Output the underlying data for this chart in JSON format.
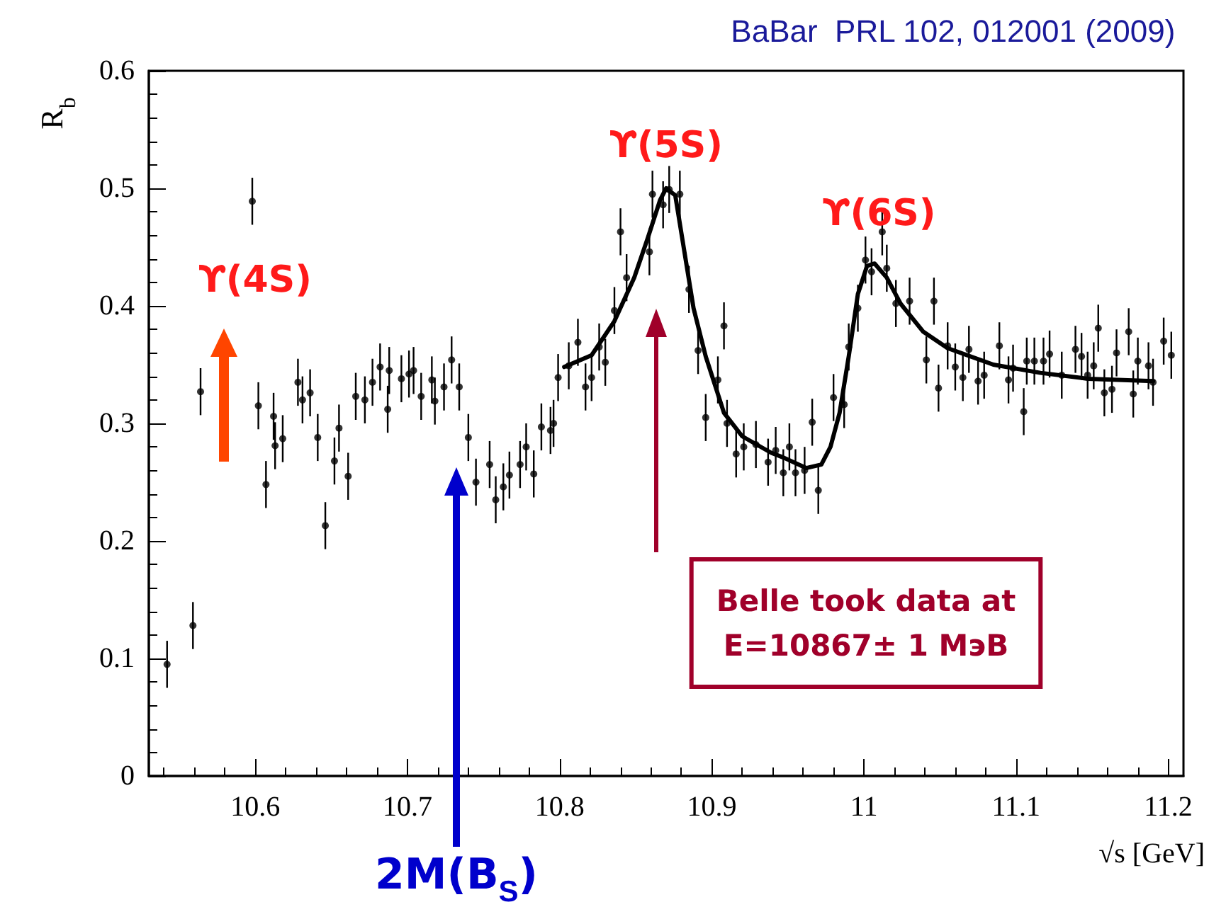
{
  "chart_data": {
    "type": "scatter",
    "title": "BaBar  PRL 102, 012001 (2009)",
    "xlabel": "√s [GeV]",
    "ylabel": "R$_{b}$",
    "xlim": [
      10.53,
      11.21
    ],
    "xticks": [
      10.6,
      10.7,
      10.8,
      10.9,
      11,
      11.1,
      11.2
    ],
    "ylim": [
      0,
      0.6
    ],
    "yticks": [
      0,
      0.1,
      0.2,
      0.3,
      0.4,
      0.5,
      0.6
    ],
    "series": [
      {
        "marker": "circle",
        "color": "#000000",
        "x": [
          10.542,
          10.559,
          10.564,
          10.598,
          10.602,
          10.607,
          10.612,
          10.613,
          10.618,
          10.628,
          10.631,
          10.636,
          10.641,
          10.646,
          10.652,
          10.655,
          10.661,
          10.666,
          10.672,
          10.677,
          10.682,
          10.687,
          10.688,
          10.696,
          10.701,
          10.704,
          10.709,
          10.716,
          10.718,
          10.724,
          10.729,
          10.734,
          10.74,
          10.745,
          10.754,
          10.758,
          10.763,
          10.767,
          10.774,
          10.778,
          10.783,
          10.788,
          10.794,
          10.796,
          10.799,
          10.806,
          10.812,
          10.817,
          10.821,
          10.826,
          10.83,
          10.836,
          10.84,
          10.844,
          10.859,
          10.861,
          10.868,
          10.872,
          10.879,
          10.885,
          10.891,
          10.896,
          10.904,
          10.908,
          10.91,
          10.916,
          10.921,
          10.929,
          10.937,
          10.942,
          10.947,
          10.951,
          10.955,
          10.961,
          10.966,
          10.97,
          10.98,
          10.987,
          10.99,
          10.996,
          11.001,
          11.005,
          11.012,
          11.015,
          11.021,
          11.03,
          11.041,
          11.046,
          11.049,
          11.055,
          11.06,
          11.065,
          11.069,
          11.075,
          11.079,
          11.089,
          11.095,
          11.098,
          11.105,
          11.107,
          11.112,
          11.118,
          11.122,
          11.13,
          11.139,
          11.143,
          11.147,
          11.151,
          11.154,
          11.158,
          11.163,
          11.166,
          11.174,
          11.177,
          11.18,
          11.187,
          11.19,
          11.197,
          11.202
        ],
        "values": [
          0.095,
          0.128,
          0.327,
          0.489,
          0.315,
          0.248,
          0.306,
          0.281,
          0.287,
          0.335,
          0.32,
          0.326,
          0.288,
          0.213,
          0.268,
          0.296,
          0.255,
          0.323,
          0.32,
          0.335,
          0.348,
          0.312,
          0.345,
          0.338,
          0.342,
          0.345,
          0.323,
          0.337,
          0.319,
          0.331,
          0.354,
          0.331,
          0.288,
          0.25,
          0.265,
          0.235,
          0.246,
          0.256,
          0.265,
          0.28,
          0.257,
          0.297,
          0.294,
          0.3,
          0.339,
          0.349,
          0.369,
          0.331,
          0.339,
          0.365,
          0.352,
          0.396,
          0.463,
          0.424,
          0.446,
          0.495,
          0.486,
          0.499,
          0.495,
          0.414,
          0.362,
          0.305,
          0.337,
          0.383,
          0.3,
          0.274,
          0.28,
          0.282,
          0.267,
          0.277,
          0.258,
          0.28,
          0.258,
          0.26,
          0.301,
          0.243,
          0.322,
          0.316,
          0.365,
          0.398,
          0.439,
          0.429,
          0.463,
          0.432,
          0.402,
          0.404,
          0.354,
          0.404,
          0.33,
          0.366,
          0.348,
          0.339,
          0.363,
          0.336,
          0.341,
          0.366,
          0.337,
          0.347,
          0.31,
          0.353,
          0.353,
          0.353,
          0.359,
          0.341,
          0.363,
          0.357,
          0.341,
          0.349,
          0.381,
          0.326,
          0.329,
          0.36,
          0.378,
          0.325,
          0.353,
          0.349,
          0.335,
          0.37,
          0.358
        ],
        "errors": [
          0.02,
          0.02,
          0.02,
          0.02,
          0.02,
          0.02,
          0.02,
          0.02,
          0.02,
          0.02,
          0.02,
          0.02,
          0.02,
          0.02,
          0.02,
          0.02,
          0.02,
          0.02,
          0.02,
          0.02,
          0.02,
          0.02,
          0.02,
          0.02,
          0.02,
          0.02,
          0.02,
          0.02,
          0.02,
          0.02,
          0.02,
          0.02,
          0.02,
          0.02,
          0.02,
          0.02,
          0.02,
          0.02,
          0.02,
          0.02,
          0.02,
          0.02,
          0.02,
          0.02,
          0.02,
          0.02,
          0.02,
          0.02,
          0.02,
          0.02,
          0.02,
          0.02,
          0.02,
          0.02,
          0.02,
          0.02,
          0.02,
          0.02,
          0.02,
          0.02,
          0.02,
          0.02,
          0.02,
          0.02,
          0.02,
          0.02,
          0.02,
          0.02,
          0.02,
          0.02,
          0.02,
          0.02,
          0.02,
          0.02,
          0.02,
          0.02,
          0.02,
          0.02,
          0.02,
          0.02,
          0.02,
          0.02,
          0.02,
          0.02,
          0.02,
          0.02,
          0.02,
          0.02,
          0.02,
          0.02,
          0.02,
          0.02,
          0.02,
          0.02,
          0.02,
          0.02,
          0.02,
          0.02,
          0.02,
          0.02,
          0.02,
          0.02,
          0.02,
          0.02,
          0.02,
          0.02,
          0.02,
          0.02,
          0.02,
          0.02,
          0.02,
          0.02,
          0.02,
          0.02,
          0.02,
          0.02,
          0.02,
          0.02,
          0.02
        ]
      },
      {
        "type": "line",
        "color": "#000000",
        "x": [
          10.803,
          10.821,
          10.836,
          10.849,
          10.858,
          10.866,
          10.87,
          10.876,
          10.882,
          10.888,
          10.896,
          10.908,
          10.92,
          10.939,
          10.947,
          10.962,
          10.972,
          10.978,
          10.984,
          10.99,
          10.996,
          11.002,
          11.007,
          11.015,
          11.024,
          11.039,
          11.055,
          11.085,
          11.116,
          11.147,
          11.19
        ],
        "values": [
          0.348,
          0.358,
          0.387,
          0.424,
          0.458,
          0.49,
          0.5,
          0.494,
          0.446,
          0.398,
          0.357,
          0.309,
          0.289,
          0.275,
          0.271,
          0.262,
          0.265,
          0.28,
          0.309,
          0.357,
          0.41,
          0.434,
          0.436,
          0.424,
          0.402,
          0.378,
          0.364,
          0.35,
          0.343,
          0.338,
          0.336
        ]
      }
    ],
    "annotations": [
      "ϒ(4S)",
      {
        "text": "ϒ(5S)",
        "x": 10.87,
        "y": 0.5
      },
      {
        "text": "ϒ(6S)",
        "x": 11.01,
        "y": 0.44
      },
      "2M(B$_{S}$)",
      "Belle took data at\nE=10867± 1 MэВ"
    ]
  }
}
